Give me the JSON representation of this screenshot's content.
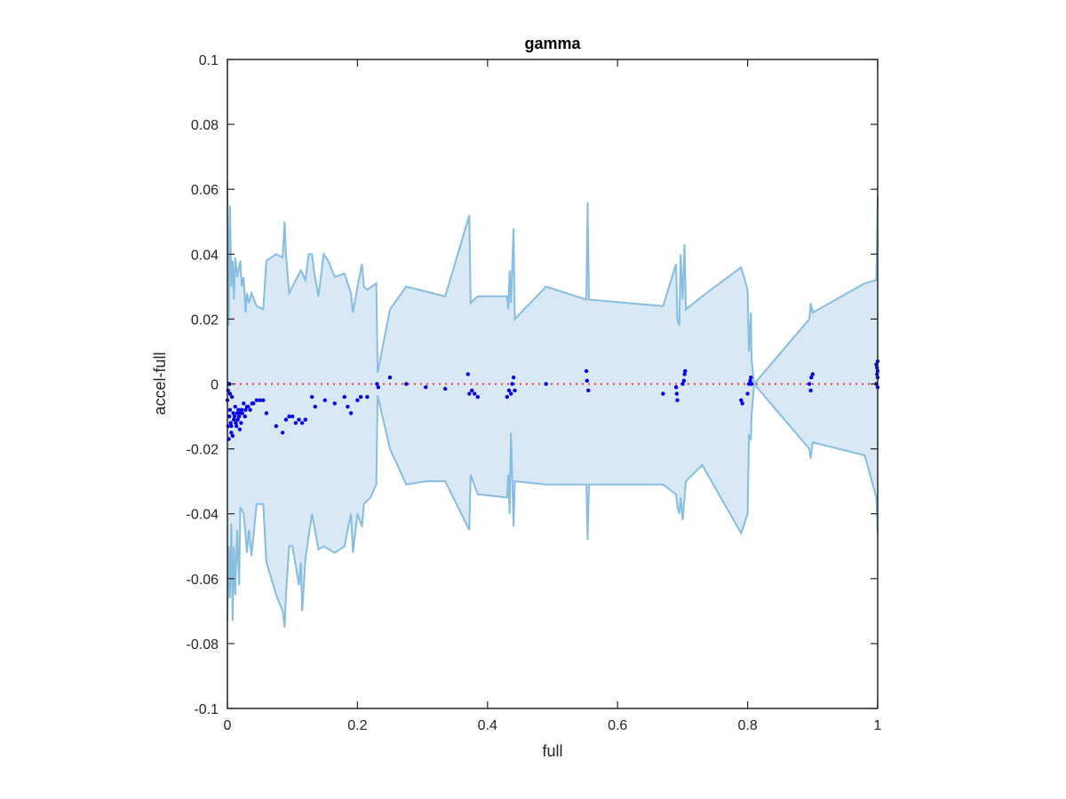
{
  "chart_data": {
    "type": "scatter",
    "title": "gamma",
    "xlabel": "full",
    "ylabel": "accel-full",
    "xlim": [
      0,
      1
    ],
    "ylim": [
      -0.1,
      0.1
    ],
    "xticks": [
      0,
      0.2,
      0.4,
      0.6,
      0.8,
      1
    ],
    "xtick_labels": [
      "0",
      "0.2",
      "0.4",
      "0.6",
      "0.8",
      "1"
    ],
    "yticks": [
      0.1,
      0.08,
      0.06,
      0.04,
      0.02,
      0,
      -0.02,
      -0.04,
      -0.06,
      -0.08,
      -0.1
    ],
    "ytick_labels": [
      "0.1",
      "0.08",
      "0.06",
      "0.04",
      "0.02",
      "0",
      "-0.02",
      "-0.04",
      "-0.06",
      "-0.08",
      "-0.1"
    ],
    "grid": false,
    "colors": {
      "band_fill": "#d8e8f5",
      "band_line": "#86bde0",
      "points": "#0000ee",
      "zero_line": "#ff3333",
      "axes": "#262626"
    },
    "zero_line": {
      "y": 0,
      "style": "dotted"
    },
    "band": {
      "upper": [
        [
          0,
          0.062
        ],
        [
          0.002,
          0.018
        ],
        [
          0.004,
          0.055
        ],
        [
          0.006,
          0.03
        ],
        [
          0.008,
          0.038
        ],
        [
          0.01,
          0.026
        ],
        [
          0.012,
          0.039
        ],
        [
          0.015,
          0.033
        ],
        [
          0.02,
          0.038
        ],
        [
          0.022,
          0.03
        ],
        [
          0.025,
          0.033
        ],
        [
          0.028,
          0.022
        ],
        [
          0.03,
          0.028
        ],
        [
          0.033,
          0.025
        ],
        [
          0.037,
          0.028
        ],
        [
          0.045,
          0.024
        ],
        [
          0.055,
          0.023
        ],
        [
          0.06,
          0.038
        ],
        [
          0.075,
          0.04
        ],
        [
          0.085,
          0.039
        ],
        [
          0.088,
          0.05
        ],
        [
          0.09,
          0.04
        ],
        [
          0.095,
          0.028
        ],
        [
          0.105,
          0.032
        ],
        [
          0.113,
          0.035
        ],
        [
          0.12,
          0.032
        ],
        [
          0.125,
          0.04
        ],
        [
          0.13,
          0.04
        ],
        [
          0.133,
          0.035
        ],
        [
          0.14,
          0.027
        ],
        [
          0.148,
          0.04
        ],
        [
          0.155,
          0.038
        ],
        [
          0.165,
          0.033
        ],
        [
          0.18,
          0.034
        ],
        [
          0.19,
          0.028
        ],
        [
          0.193,
          0.022
        ],
        [
          0.2,
          0.03
        ],
        [
          0.207,
          0.037
        ],
        [
          0.21,
          0.03
        ],
        [
          0.215,
          0.029
        ],
        [
          0.229,
          0.031
        ],
        [
          0.231,
          0.0035
        ],
        [
          0.25,
          0.023
        ],
        [
          0.275,
          0.03
        ],
        [
          0.335,
          0.027
        ],
        [
          0.372,
          0.052
        ],
        [
          0.374,
          0.025
        ],
        [
          0.385,
          0.027
        ],
        [
          0.43,
          0.027
        ],
        [
          0.432,
          0.023
        ],
        [
          0.434,
          0.035
        ],
        [
          0.436,
          0.025
        ],
        [
          0.44,
          0.048
        ],
        [
          0.442,
          0.02
        ],
        [
          0.49,
          0.03
        ],
        [
          0.552,
          0.026
        ],
        [
          0.554,
          0.056
        ],
        [
          0.556,
          0.026
        ],
        [
          0.67,
          0.024
        ],
        [
          0.69,
          0.037
        ],
        [
          0.692,
          0.02
        ],
        [
          0.695,
          0.018
        ],
        [
          0.697,
          0.04
        ],
        [
          0.7,
          0.026
        ],
        [
          0.703,
          0.043
        ],
        [
          0.705,
          0.023
        ],
        [
          0.73,
          0.027
        ],
        [
          0.79,
          0.036
        ],
        [
          0.8,
          0.029
        ],
        [
          0.802,
          0.01
        ],
        [
          0.805,
          0.022
        ],
        [
          0.806,
          0.008
        ],
        [
          0.81,
          0
        ],
        [
          0.895,
          0.02
        ],
        [
          0.897,
          0.025
        ],
        [
          0.9,
          0.022
        ],
        [
          0.98,
          0.031
        ],
        [
          0.998,
          0.032
        ],
        [
          1.0,
          0.058
        ]
      ],
      "lower": [
        [
          0,
          -0.073
        ],
        [
          0.002,
          -0.05
        ],
        [
          0.004,
          -0.066
        ],
        [
          0.006,
          -0.043
        ],
        [
          0.008,
          -0.073
        ],
        [
          0.01,
          -0.05
        ],
        [
          0.012,
          -0.065
        ],
        [
          0.015,
          -0.045
        ],
        [
          0.018,
          -0.062
        ],
        [
          0.02,
          -0.038
        ],
        [
          0.025,
          -0.04
        ],
        [
          0.028,
          -0.047
        ],
        [
          0.03,
          -0.052
        ],
        [
          0.033,
          -0.045
        ],
        [
          0.037,
          -0.053
        ],
        [
          0.045,
          -0.037
        ],
        [
          0.055,
          -0.037
        ],
        [
          0.06,
          -0.055
        ],
        [
          0.075,
          -0.065
        ],
        [
          0.085,
          -0.07
        ],
        [
          0.088,
          -0.075
        ],
        [
          0.09,
          -0.065
        ],
        [
          0.095,
          -0.05
        ],
        [
          0.1,
          -0.05
        ],
        [
          0.11,
          -0.062
        ],
        [
          0.113,
          -0.055
        ],
        [
          0.115,
          -0.07
        ],
        [
          0.12,
          -0.054
        ],
        [
          0.13,
          -0.04
        ],
        [
          0.14,
          -0.051
        ],
        [
          0.148,
          -0.05
        ],
        [
          0.165,
          -0.052
        ],
        [
          0.18,
          -0.05
        ],
        [
          0.19,
          -0.04
        ],
        [
          0.193,
          -0.052
        ],
        [
          0.2,
          -0.04
        ],
        [
          0.207,
          -0.044
        ],
        [
          0.21,
          -0.037
        ],
        [
          0.22,
          -0.035
        ],
        [
          0.229,
          -0.031
        ],
        [
          0.231,
          -0.0035
        ],
        [
          0.25,
          -0.02
        ],
        [
          0.275,
          -0.031
        ],
        [
          0.305,
          -0.03
        ],
        [
          0.335,
          -0.03
        ],
        [
          0.372,
          -0.045
        ],
        [
          0.374,
          -0.028
        ],
        [
          0.385,
          -0.034
        ],
        [
          0.43,
          -0.035
        ],
        [
          0.432,
          -0.028
        ],
        [
          0.434,
          -0.04
        ],
        [
          0.436,
          -0.015
        ],
        [
          0.44,
          -0.044
        ],
        [
          0.442,
          -0.03
        ],
        [
          0.49,
          -0.031
        ],
        [
          0.552,
          -0.031
        ],
        [
          0.554,
          -0.048
        ],
        [
          0.556,
          -0.031
        ],
        [
          0.67,
          -0.031
        ],
        [
          0.69,
          -0.034
        ],
        [
          0.692,
          -0.038
        ],
        [
          0.695,
          -0.04
        ],
        [
          0.697,
          -0.035
        ],
        [
          0.7,
          -0.042
        ],
        [
          0.703,
          -0.035
        ],
        [
          0.705,
          -0.03
        ],
        [
          0.73,
          -0.025
        ],
        [
          0.79,
          -0.046
        ],
        [
          0.8,
          -0.04
        ],
        [
          0.802,
          -0.016
        ],
        [
          0.805,
          -0.017
        ],
        [
          0.806,
          -0.01
        ],
        [
          0.81,
          0
        ],
        [
          0.895,
          -0.02
        ],
        [
          0.897,
          -0.023
        ],
        [
          0.9,
          -0.018
        ],
        [
          0.98,
          -0.022
        ],
        [
          0.998,
          -0.035
        ],
        [
          1.0,
          -0.046
        ]
      ]
    },
    "points": {
      "x": [
        0.0,
        0.001,
        0.002,
        0.002,
        0.003,
        0.004,
        0.005,
        0.006,
        0.007,
        0.008,
        0.009,
        0.01,
        0.011,
        0.012,
        0.013,
        0.014,
        0.015,
        0.016,
        0.017,
        0.018,
        0.019,
        0.02,
        0.021,
        0.022,
        0.023,
        0.025,
        0.027,
        0.028,
        0.03,
        0.032,
        0.035,
        0.038,
        0.04,
        0.045,
        0.05,
        0.055,
        0.06,
        0.075,
        0.085,
        0.09,
        0.095,
        0.1,
        0.105,
        0.11,
        0.115,
        0.12,
        0.13,
        0.135,
        0.15,
        0.165,
        0.18,
        0.185,
        0.19,
        0.2,
        0.205,
        0.215,
        0.23,
        0.232,
        0.25,
        0.275,
        0.305,
        0.335,
        0.37,
        0.372,
        0.376,
        0.38,
        0.385,
        0.43,
        0.433,
        0.436,
        0.438,
        0.44,
        0.442,
        0.49,
        0.552,
        0.553,
        0.555,
        0.67,
        0.69,
        0.691,
        0.692,
        0.7,
        0.702,
        0.703,
        0.704,
        0.79,
        0.792,
        0.8,
        0.802,
        0.804,
        0.805,
        0.806,
        0.895,
        0.897,
        0.898,
        0.9,
        0.998,
        0.999,
        1.0,
        1.0,
        1.0,
        0.999,
        0.998,
        1.0,
        0.001,
        0.003,
        0.004,
        0.006
      ],
      "y": [
        -0.005,
        -0.013,
        -0.017,
        0.0,
        -0.01,
        -0.008,
        -0.012,
        -0.015,
        -0.004,
        -0.016,
        -0.009,
        -0.011,
        -0.01,
        -0.007,
        -0.012,
        -0.013,
        -0.009,
        -0.011,
        -0.008,
        -0.01,
        -0.014,
        -0.009,
        -0.012,
        -0.008,
        -0.009,
        -0.006,
        -0.01,
        -0.008,
        -0.007,
        -0.007,
        -0.008,
        -0.006,
        -0.006,
        -0.005,
        -0.005,
        -0.005,
        -0.009,
        -0.013,
        -0.015,
        -0.011,
        -0.01,
        -0.01,
        -0.012,
        -0.011,
        -0.012,
        -0.011,
        -0.004,
        -0.007,
        -0.005,
        -0.006,
        -0.004,
        -0.007,
        -0.009,
        -0.005,
        -0.004,
        -0.004,
        0.0,
        -0.001,
        0.002,
        0.0,
        -0.001,
        -0.0015,
        0.003,
        -0.003,
        -0.002,
        -0.003,
        -0.004,
        -0.004,
        -0.002,
        -0.003,
        0.0,
        0.002,
        -0.002,
        0.0,
        0.004,
        0.001,
        -0.002,
        -0.003,
        -0.001,
        -0.003,
        -0.005,
        0.0,
        0.001,
        0.003,
        0.004,
        -0.005,
        -0.006,
        -0.003,
        0.0,
        0.001,
        0.002,
        0.0,
        0.0,
        -0.002,
        0.002,
        0.003,
        0.0,
        0.005,
        0.007,
        0.002,
        -0.001,
        0.003,
        0.006,
        0.004,
        -0.002,
        0.0,
        -0.003,
        -0.013
      ]
    }
  }
}
